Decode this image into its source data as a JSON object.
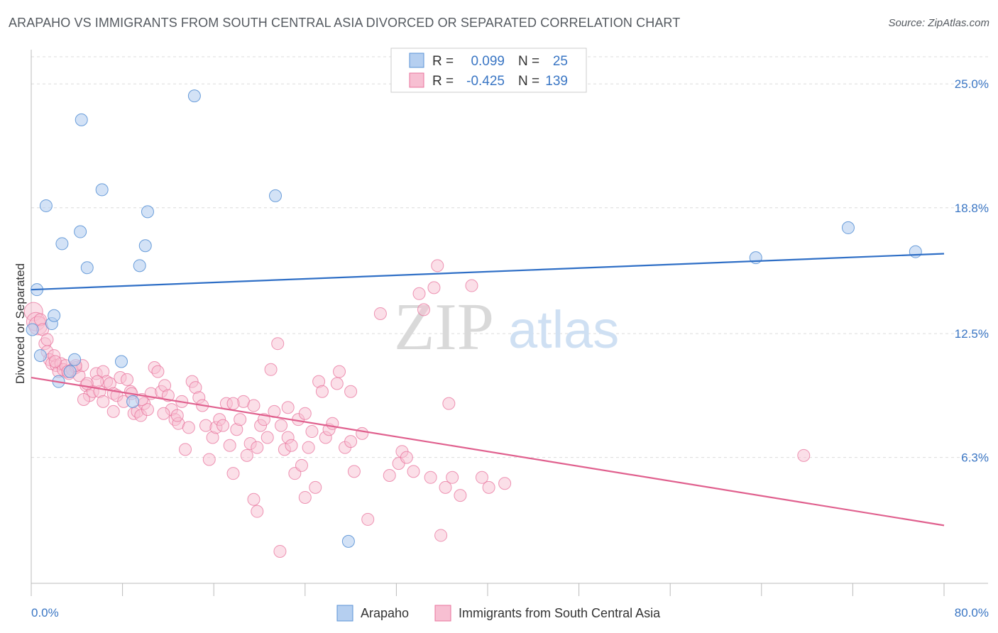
{
  "title": "ARAPAHO VS IMMIGRANTS FROM SOUTH CENTRAL ASIA DIVORCED OR SEPARATED CORRELATION CHART",
  "source": "Source: ZipAtlas.com",
  "watermark": {
    "zip": "ZIP",
    "atlas": "atlas"
  },
  "colors": {
    "blue": "#5b93d6",
    "blue_fill": "#b5cff0",
    "pink": "#e8739c",
    "pink_fill": "#f7bfd2",
    "grid": "#dcdcdc",
    "tick_text": "#3a76c4"
  },
  "legend": {
    "r_label": "R =",
    "n_label": "N =",
    "rows": [
      {
        "r": "0.099",
        "n": "25",
        "color": "blue"
      },
      {
        "r": "-0.425",
        "n": "139",
        "color": "pink"
      }
    ]
  },
  "bottom_legend": [
    "Arapaho",
    "Immigrants from South Central Asia"
  ],
  "chart_data": {
    "type": "scatter",
    "title": "ARAPAHO VS IMMIGRANTS FROM SOUTH CENTRAL ASIA DIVORCED OR SEPARATED CORRELATION CHART",
    "xlabel": "",
    "ylabel": "Divorced or Separated",
    "xlim": [
      0,
      80
    ],
    "ylim": [
      0,
      26.5
    ],
    "x_tick_labels": [
      "0.0%",
      "80.0%"
    ],
    "y_ticks": [
      6.3,
      12.5,
      18.8,
      25.0
    ],
    "y_tick_labels": [
      "6.3%",
      "12.5%",
      "18.8%",
      "25.0%"
    ],
    "grid": true,
    "series": [
      {
        "name": "Arapaho",
        "color": "#5b93d6",
        "trend": {
          "x": [
            0,
            80
          ],
          "y": [
            14.7,
            16.5
          ]
        },
        "points": [
          [
            0.1,
            12.7
          ],
          [
            0.5,
            14.7
          ],
          [
            0.8,
            11.4
          ],
          [
            1.3,
            18.9
          ],
          [
            1.8,
            13.0
          ],
          [
            2.0,
            13.4
          ],
          [
            2.4,
            10.1
          ],
          [
            2.7,
            17.0
          ],
          [
            3.4,
            10.6
          ],
          [
            3.8,
            11.2
          ],
          [
            4.4,
            23.2
          ],
          [
            4.3,
            17.6
          ],
          [
            4.9,
            15.8
          ],
          [
            6.2,
            19.7
          ],
          [
            7.9,
            11.1
          ],
          [
            8.9,
            9.1
          ],
          [
            9.5,
            15.9
          ],
          [
            10.0,
            16.9
          ],
          [
            10.2,
            18.6
          ],
          [
            14.3,
            24.4
          ],
          [
            21.4,
            19.4
          ],
          [
            27.8,
            2.1
          ],
          [
            63.5,
            16.3
          ],
          [
            71.6,
            17.8
          ],
          [
            77.5,
            16.6
          ]
        ]
      },
      {
        "name": "Immigrants from South Central Asia",
        "color": "#e8739c",
        "trend": {
          "x": [
            0,
            80
          ],
          "y": [
            10.3,
            2.9
          ]
        },
        "points": [
          [
            0.2,
            13.6
          ],
          [
            0.4,
            13.1
          ],
          [
            0.6,
            12.9
          ],
          [
            0.8,
            13.2
          ],
          [
            1.0,
            12.7
          ],
          [
            1.2,
            12.0
          ],
          [
            1.4,
            11.6
          ],
          [
            1.6,
            11.2
          ],
          [
            1.8,
            11.0
          ],
          [
            2.0,
            11.4
          ],
          [
            2.2,
            10.9
          ],
          [
            2.4,
            10.6
          ],
          [
            2.6,
            11.0
          ],
          [
            2.8,
            10.7
          ],
          [
            3.0,
            10.9
          ],
          [
            3.3,
            10.5
          ],
          [
            3.6,
            10.7
          ],
          [
            3.9,
            10.8
          ],
          [
            4.2,
            10.4
          ],
          [
            4.5,
            10.9
          ],
          [
            4.8,
            9.9
          ],
          [
            5.1,
            9.4
          ],
          [
            5.4,
            9.6
          ],
          [
            5.7,
            10.5
          ],
          [
            6.0,
            9.6
          ],
          [
            6.3,
            10.6
          ],
          [
            6.6,
            10.1
          ],
          [
            6.9,
            10.0
          ],
          [
            7.2,
            9.5
          ],
          [
            7.5,
            9.4
          ],
          [
            7.8,
            10.3
          ],
          [
            8.1,
            9.1
          ],
          [
            8.4,
            10.2
          ],
          [
            8.7,
            9.6
          ],
          [
            9.0,
            8.5
          ],
          [
            9.3,
            8.6
          ],
          [
            9.6,
            8.4
          ],
          [
            9.9,
            9.0
          ],
          [
            10.2,
            8.7
          ],
          [
            10.5,
            9.5
          ],
          [
            10.8,
            10.8
          ],
          [
            11.1,
            10.6
          ],
          [
            11.4,
            9.6
          ],
          [
            11.7,
            9.9
          ],
          [
            12.0,
            9.4
          ],
          [
            12.3,
            8.7
          ],
          [
            12.6,
            8.2
          ],
          [
            12.9,
            8.0
          ],
          [
            13.2,
            9.1
          ],
          [
            13.5,
            6.7
          ],
          [
            13.8,
            7.8
          ],
          [
            14.1,
            10.1
          ],
          [
            14.4,
            9.8
          ],
          [
            14.7,
            9.3
          ],
          [
            15.0,
            8.9
          ],
          [
            15.3,
            7.9
          ],
          [
            15.6,
            6.2
          ],
          [
            15.9,
            7.3
          ],
          [
            16.2,
            7.8
          ],
          [
            16.5,
            8.2
          ],
          [
            16.8,
            7.9
          ],
          [
            17.1,
            9.0
          ],
          [
            17.4,
            6.9
          ],
          [
            17.7,
            5.5
          ],
          [
            18.0,
            7.7
          ],
          [
            18.3,
            8.2
          ],
          [
            18.6,
            9.1
          ],
          [
            18.9,
            6.4
          ],
          [
            19.2,
            7.0
          ],
          [
            19.5,
            8.9
          ],
          [
            19.8,
            6.8
          ],
          [
            20.1,
            7.9
          ],
          [
            20.4,
            8.2
          ],
          [
            20.7,
            7.3
          ],
          [
            21.0,
            10.7
          ],
          [
            21.3,
            8.6
          ],
          [
            21.6,
            12.0
          ],
          [
            21.9,
            7.9
          ],
          [
            22.2,
            6.7
          ],
          [
            22.5,
            7.3
          ],
          [
            22.8,
            6.9
          ],
          [
            23.1,
            5.5
          ],
          [
            23.4,
            8.2
          ],
          [
            23.7,
            5.9
          ],
          [
            24.0,
            8.5
          ],
          [
            24.3,
            6.8
          ],
          [
            24.6,
            7.6
          ],
          [
            24.9,
            4.8
          ],
          [
            25.2,
            10.1
          ],
          [
            25.5,
            9.6
          ],
          [
            25.8,
            7.3
          ],
          [
            26.1,
            7.7
          ],
          [
            26.4,
            8.0
          ],
          [
            27.0,
            10.6
          ],
          [
            27.5,
            6.8
          ],
          [
            28.0,
            7.1
          ],
          [
            28.3,
            5.6
          ],
          [
            29.0,
            7.5
          ],
          [
            30.6,
            13.5
          ],
          [
            31.4,
            5.4
          ],
          [
            32.2,
            6.0
          ],
          [
            32.5,
            6.6
          ],
          [
            32.9,
            6.3
          ],
          [
            33.5,
            5.6
          ],
          [
            34.0,
            14.5
          ],
          [
            34.4,
            13.7
          ],
          [
            35.0,
            5.3
          ],
          [
            35.3,
            14.8
          ],
          [
            35.6,
            15.9
          ],
          [
            35.9,
            2.4
          ],
          [
            36.3,
            4.8
          ],
          [
            36.6,
            9.0
          ],
          [
            36.9,
            5.3
          ],
          [
            37.6,
            4.4
          ],
          [
            38.6,
            14.9
          ],
          [
            39.5,
            5.3
          ],
          [
            40.1,
            4.8
          ],
          [
            41.5,
            5.0
          ],
          [
            19.5,
            4.2
          ],
          [
            19.8,
            3.6
          ],
          [
            21.8,
            1.6
          ],
          [
            29.5,
            3.2
          ],
          [
            28.0,
            9.6
          ],
          [
            26.8,
            10.0
          ],
          [
            22.5,
            8.8
          ],
          [
            17.7,
            9.0
          ],
          [
            12.8,
            8.4
          ],
          [
            11.6,
            8.5
          ],
          [
            9.7,
            9.2
          ],
          [
            8.8,
            9.5
          ],
          [
            7.2,
            8.6
          ],
          [
            6.3,
            9.1
          ],
          [
            5.8,
            10.1
          ],
          [
            4.9,
            10.0
          ],
          [
            4.6,
            9.2
          ],
          [
            3.9,
            10.9
          ],
          [
            3.2,
            10.6
          ],
          [
            2.1,
            11.1
          ],
          [
            1.4,
            12.2
          ],
          [
            67.7,
            6.4
          ],
          [
            24.0,
            4.3
          ]
        ]
      }
    ]
  }
}
